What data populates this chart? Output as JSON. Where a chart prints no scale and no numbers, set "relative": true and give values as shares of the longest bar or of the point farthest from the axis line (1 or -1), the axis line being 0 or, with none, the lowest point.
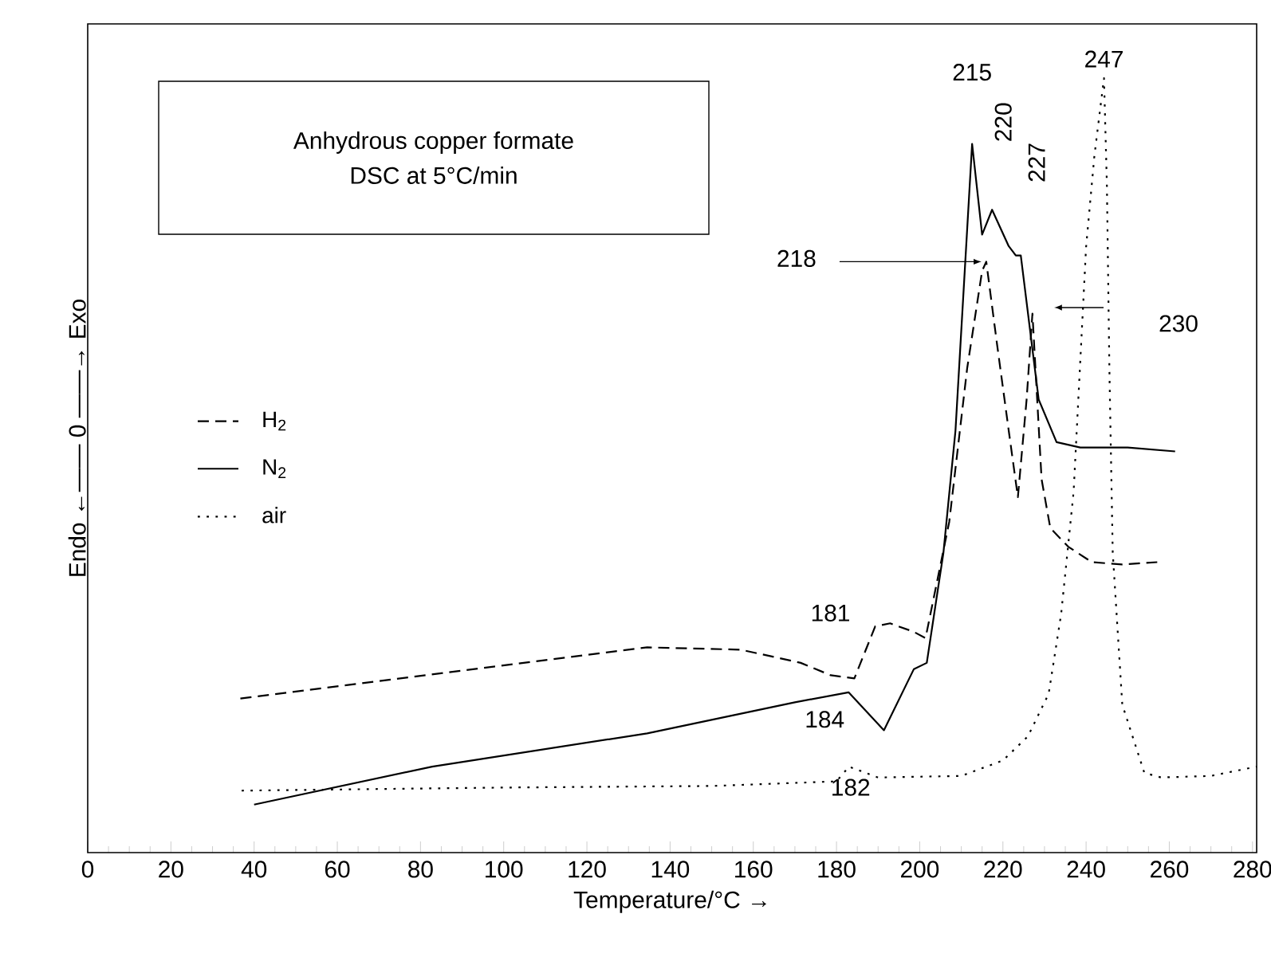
{
  "chart_data": {
    "type": "line",
    "title": "Anhydrous copper formate",
    "subtitle": "DSC at 5°C/min",
    "xlabel": "Temperature/°C   →",
    "ylabel": "Endo  ←——  0  ——→  Exo",
    "relative": true,
    "xlim": [
      0,
      281
    ],
    "xticks": [
      0,
      20,
      40,
      60,
      80,
      100,
      120,
      140,
      160,
      180,
      200,
      220,
      240,
      260,
      280
    ],
    "legend": "left",
    "series": [
      {
        "name": "H$_{2}$",
        "color": "#000000",
        "line_style": "dashed",
        "x": [
          36.7,
          134.5,
          157,
          171.4,
          178.6,
          184.3,
          189.3,
          192.9,
          198.6,
          201.4,
          207.1,
          211.4,
          215,
          216,
          218.6,
          221.4,
          223.6,
          225.7,
          227.1,
          229.3,
          231.4,
          235.7,
          241.4,
          248.6,
          257.1
        ],
        "values": [
          0.199,
          0.265,
          0.262,
          0.245,
          0.229,
          0.225,
          0.292,
          0.296,
          0.285,
          0.277,
          0.427,
          0.625,
          0.751,
          0.763,
          0.656,
          0.545,
          0.459,
          0.585,
          0.696,
          0.482,
          0.419,
          0.395,
          0.375,
          0.372,
          0.375
        ]
      },
      {
        "name": "N$_{2}$",
        "color": "#000000",
        "line_style": "solid",
        "x": [
          40,
          82.8,
          134.5,
          170,
          182.9,
          191.4,
          198.6,
          201.7,
          205.7,
          208.6,
          212.6,
          215,
          217.4,
          221.4,
          223.1,
          224.3,
          228.6,
          232.9,
          238.6,
          250,
          261.4
        ],
        "values": [
          0.062,
          0.111,
          0.154,
          0.194,
          0.207,
          0.158,
          0.237,
          0.245,
          0.387,
          0.545,
          0.915,
          0.798,
          0.83,
          0.783,
          0.771,
          0.771,
          0.585,
          0.53,
          0.523,
          0.523,
          0.518
        ]
      },
      {
        "name": "air",
        "color": "#000000",
        "line_style": "dotted",
        "x": [
          37,
          100,
          150,
          180,
          183,
          190,
          210,
          220,
          226,
          231,
          234,
          237,
          240,
          242,
          244.3,
          245,
          245.6,
          246.4,
          248.7,
          254,
          258,
          270,
          281
        ],
        "values": [
          0.08,
          0.084,
          0.086,
          0.092,
          0.111,
          0.097,
          0.099,
          0.119,
          0.15,
          0.205,
          0.308,
          0.466,
          0.782,
          0.9,
          1,
          0.862,
          0.624,
          0.388,
          0.191,
          0.103,
          0.097,
          0.099,
          0.111
        ]
      }
    ],
    "annotations": [
      {
        "text": "215",
        "x": 212.6,
        "y": 0.915
      },
      {
        "text": "220",
        "x": 217.4,
        "y": 0.83
      },
      "227",
      {
        "text": "218",
        "x": 216,
        "y": 0.763
      },
      "230",
      {
        "text": "247",
        "x": 244.3,
        "y": 1
      },
      {
        "text": "181",
        "x": 184.3,
        "y": 0.225
      },
      {
        "text": "184",
        "x": 182.9,
        "y": 0.207
      },
      {
        "text": "182",
        "x": 183,
        "y": 0.111
      }
    ]
  }
}
